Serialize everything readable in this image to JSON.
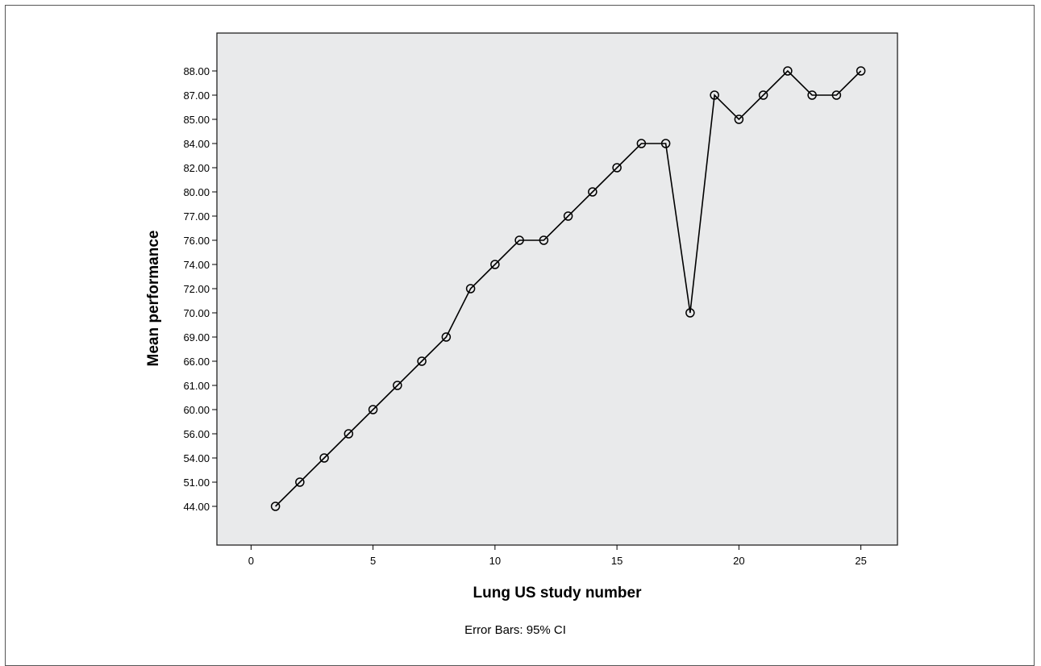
{
  "chart_data": {
    "type": "line",
    "title": "",
    "xlabel": "Lung US study number",
    "ylabel": "Mean  performance",
    "footnote": "Error Bars: 95% CI",
    "x_ticks": [
      0,
      5,
      10,
      15,
      20,
      25
    ],
    "xlim": [
      -1.4,
      26.5
    ],
    "y_categories": [
      "44.00",
      "51.00",
      "54.00",
      "56.00",
      "60.00",
      "61.00",
      "66.00",
      "69.00",
      "70.00",
      "72.00",
      "74.00",
      "76.00",
      "77.00",
      "80.00",
      "82.00",
      "84.00",
      "85.00",
      "87.00",
      "88.00"
    ],
    "y_axis_note": "categorical axis: tick labels are equally spaced",
    "series": [
      {
        "x": [
          1,
          2,
          3,
          4,
          5,
          6,
          7,
          8,
          9,
          10,
          11,
          12,
          13,
          14,
          15,
          16,
          17,
          18,
          19,
          20,
          21,
          22,
          23,
          24,
          25
        ],
        "y": [
          "44.00",
          "51.00",
          "54.00",
          "56.00",
          "60.00",
          "61.00",
          "66.00",
          "69.00",
          "72.00",
          "74.00",
          "76.00",
          "76.00",
          "77.00",
          "80.00",
          "82.00",
          "84.00",
          "84.00",
          "70.00",
          "87.00",
          "85.00",
          "87.00",
          "88.00",
          "87.00",
          "87.00",
          "88.00"
        ]
      }
    ],
    "grid": false,
    "marker": "hollow-circle",
    "colors": {
      "plot_background": "#e9eaeb",
      "line": "#000000"
    }
  }
}
